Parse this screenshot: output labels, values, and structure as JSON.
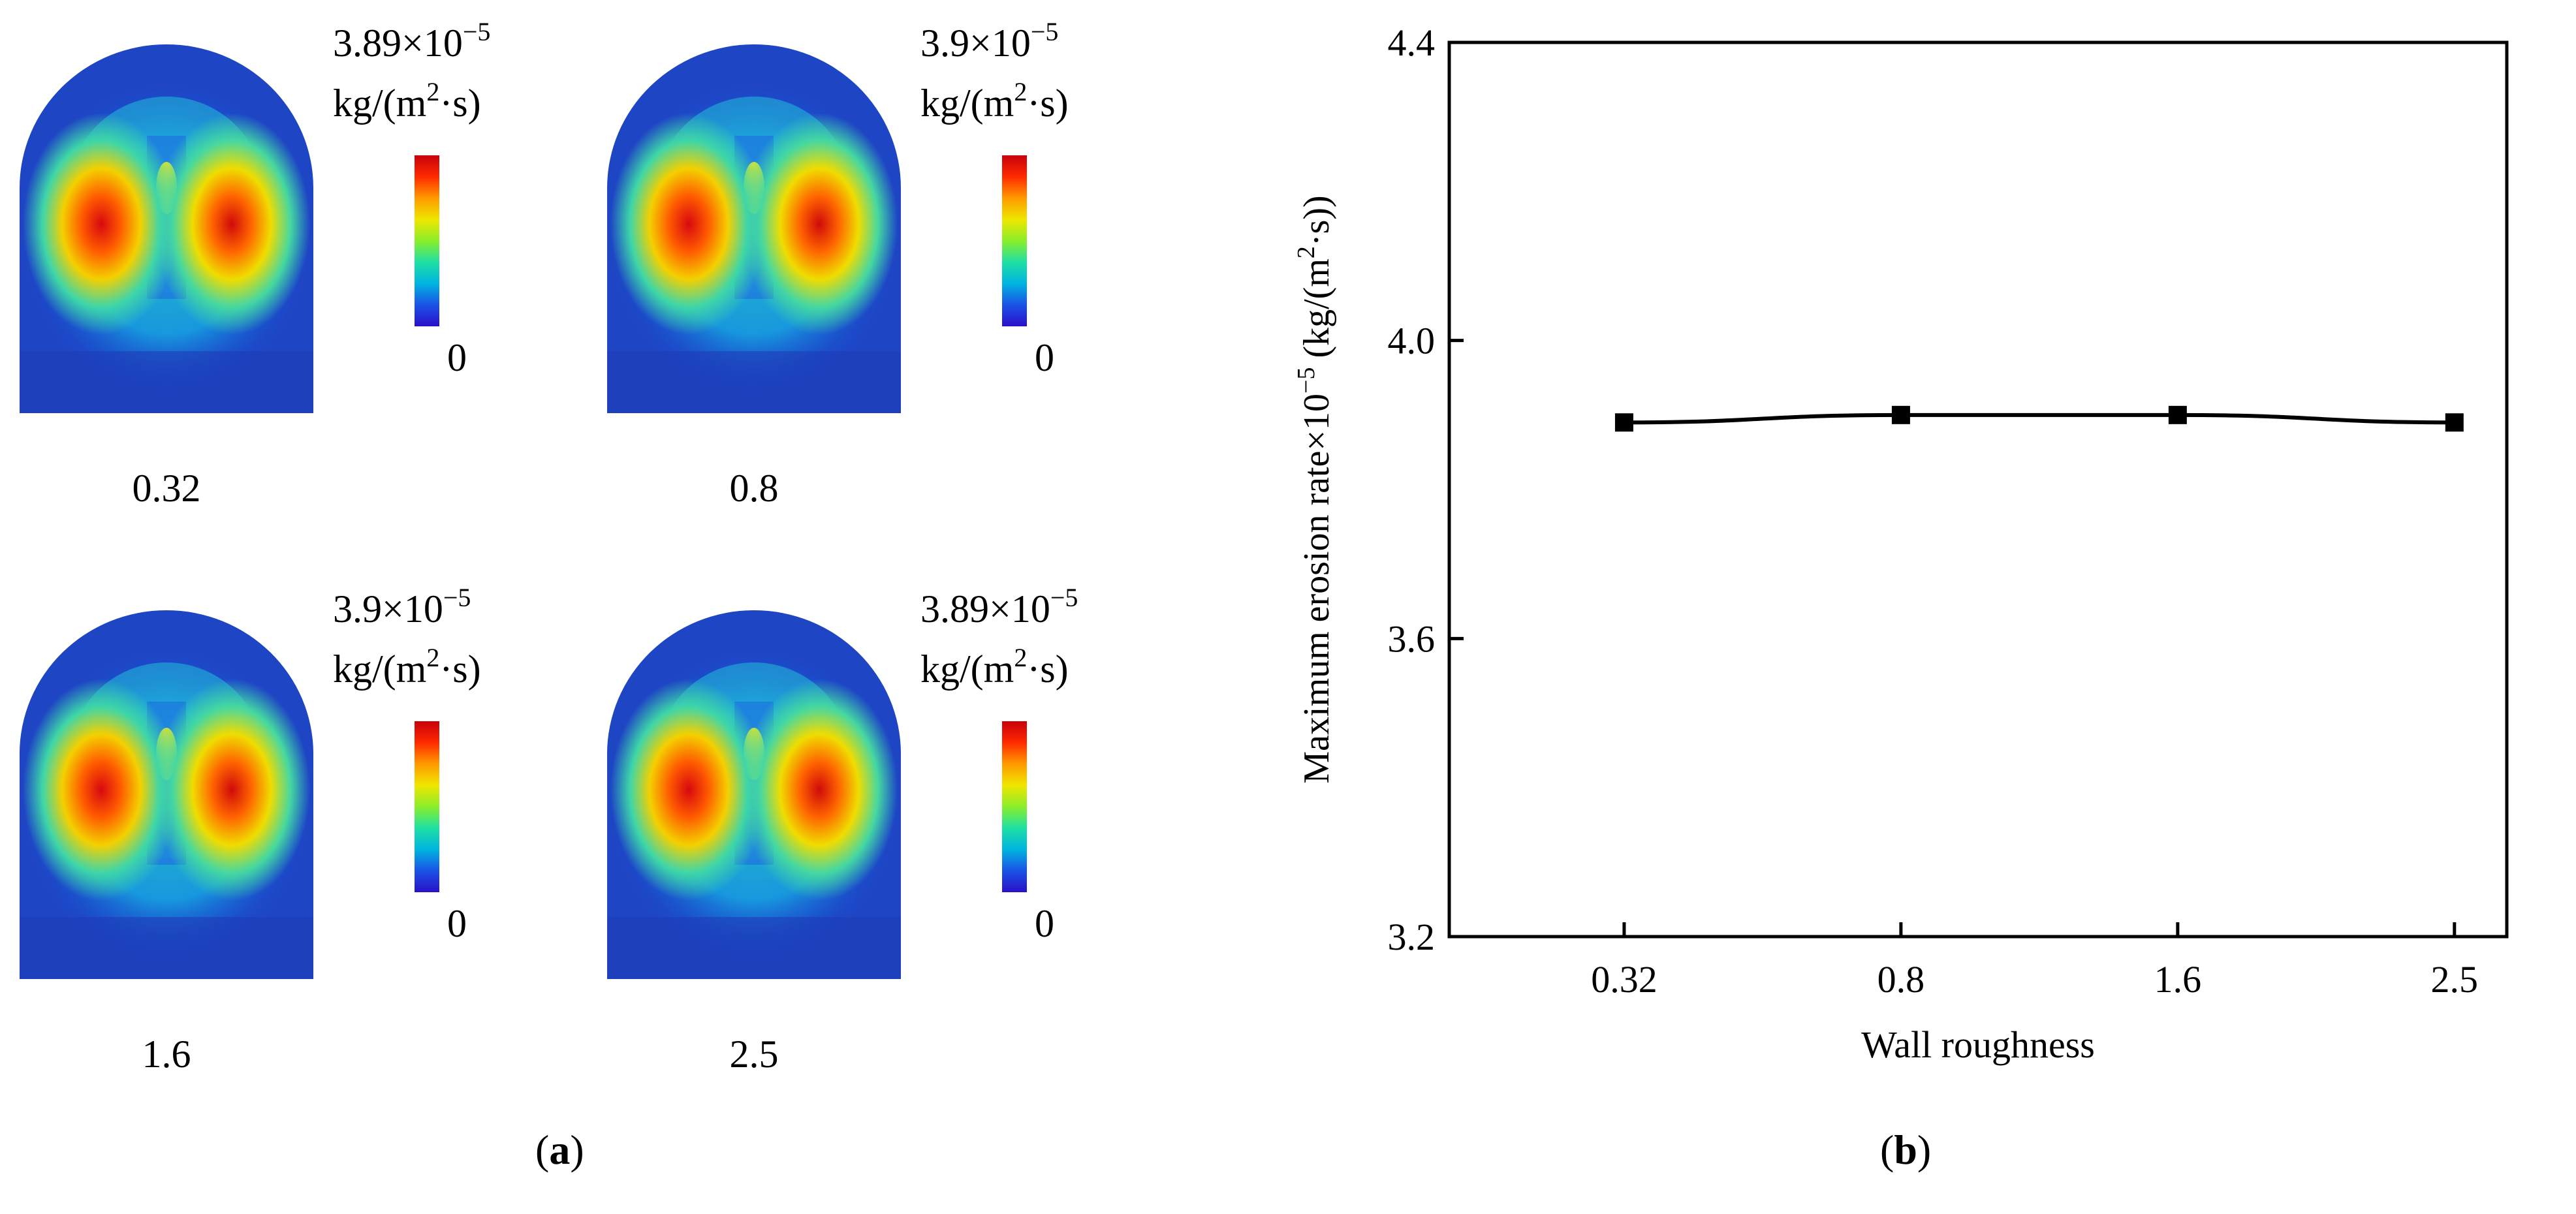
{
  "panel_a": {
    "label": "(a)",
    "colorbar_colors": [
      "#c8000a",
      "#ff2a00",
      "#ff9a00",
      "#f0e600",
      "#8aee2a",
      "#1ee0a4",
      "#00b4e0",
      "#1a52e6",
      "#2a10c8"
    ],
    "maps": [
      {
        "roughness": "0.32",
        "max_mantissa": "3.89",
        "times": "×",
        "exp_base": "10",
        "exp": "−5",
        "unit_a": "kg/(m",
        "unit_sup": "2",
        "unit_b": "·s)",
        "min_label": "0"
      },
      {
        "roughness": "0.8",
        "max_mantissa": "3.9",
        "times": "×",
        "exp_base": "10",
        "exp": "−5",
        "unit_a": "kg/(m",
        "unit_sup": "2",
        "unit_b": "·s)",
        "min_label": "0"
      },
      {
        "roughness": "1.6",
        "max_mantissa": "3.9",
        "times": "×",
        "exp_base": "10",
        "exp": "−5",
        "unit_a": "kg/(m",
        "unit_sup": "2",
        "unit_b": "·s)",
        "min_label": "0"
      },
      {
        "roughness": "2.5",
        "max_mantissa": "3.89",
        "times": "×",
        "exp_base": "10",
        "exp": "−5",
        "unit_a": "kg/(m",
        "unit_sup": "2",
        "unit_b": "·s)",
        "min_label": "0"
      }
    ]
  },
  "panel_b": {
    "label": "(b)"
  },
  "chart_data": {
    "type": "line",
    "title": "",
    "xlabel": "Wall roughness",
    "ylabel_parts": [
      "Maximum erosion rate×10",
      "−5",
      " (kg/(m",
      "2",
      "·s))"
    ],
    "categories": [
      "0.32",
      "0.8",
      "1.6",
      "2.5"
    ],
    "series": [
      {
        "name": "Maximum erosion rate",
        "values": [
          3.89,
          3.9,
          3.9,
          3.89
        ],
        "marker": "square",
        "color": "#000000"
      }
    ],
    "ylim": [
      3.2,
      4.4
    ],
    "yticks": [
      "3.2",
      "3.6",
      "4.0",
      "4.4"
    ],
    "grid": false
  }
}
